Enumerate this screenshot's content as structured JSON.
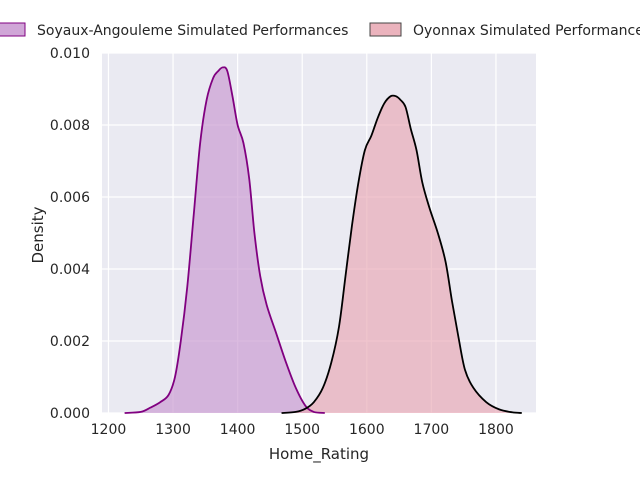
{
  "chart_data": {
    "type": "area",
    "title": "",
    "xlabel": "Home_Rating",
    "ylabel": "Density",
    "xlim": [
      1190,
      1862
    ],
    "ylim": [
      0,
      0.01
    ],
    "x_ticks": [
      1200,
      1300,
      1400,
      1500,
      1600,
      1700,
      1800
    ],
    "y_ticks": [
      0.0,
      0.002,
      0.004,
      0.006,
      0.008,
      0.01
    ],
    "y_tick_labels": [
      "0.000",
      "0.002",
      "0.004",
      "0.006",
      "0.008",
      "0.010"
    ],
    "grid": true,
    "legend_position": "top",
    "series": [
      {
        "name": "Soyaux-Angouleme Simulated Performances",
        "fill": "#c897d0",
        "line": "#800080",
        "points": [
          [
            1225,
            0.0
          ],
          [
            1250,
            3e-05
          ],
          [
            1265,
            0.00015
          ],
          [
            1280,
            0.0003
          ],
          [
            1293,
            0.0005
          ],
          [
            1303,
            0.001
          ],
          [
            1312,
            0.002
          ],
          [
            1322,
            0.0035
          ],
          [
            1332,
            0.0055
          ],
          [
            1342,
            0.0075
          ],
          [
            1352,
            0.0087
          ],
          [
            1362,
            0.0093
          ],
          [
            1370,
            0.0095
          ],
          [
            1377,
            0.0096
          ],
          [
            1384,
            0.0095
          ],
          [
            1392,
            0.0088
          ],
          [
            1400,
            0.008
          ],
          [
            1409,
            0.0075
          ],
          [
            1418,
            0.0065
          ],
          [
            1426,
            0.005
          ],
          [
            1435,
            0.0038
          ],
          [
            1445,
            0.003
          ],
          [
            1460,
            0.0022
          ],
          [
            1475,
            0.0014
          ],
          [
            1490,
            0.0007
          ],
          [
            1505,
            0.0002
          ],
          [
            1518,
            3e-05
          ],
          [
            1535,
            0.0
          ]
        ]
      },
      {
        "name": "Oyonnax Simulated Performances",
        "fill": "#e8a6b2",
        "line": "#000000",
        "points": [
          [
            1468,
            0.0
          ],
          [
            1490,
            3e-05
          ],
          [
            1505,
            0.00012
          ],
          [
            1518,
            0.0003
          ],
          [
            1532,
            0.0007
          ],
          [
            1545,
            0.0014
          ],
          [
            1557,
            0.0024
          ],
          [
            1567,
            0.0038
          ],
          [
            1577,
            0.0052
          ],
          [
            1587,
            0.0064
          ],
          [
            1597,
            0.0073
          ],
          [
            1607,
            0.0077
          ],
          [
            1617,
            0.0082
          ],
          [
            1627,
            0.0086
          ],
          [
            1637,
            0.0088
          ],
          [
            1645,
            0.0088
          ],
          [
            1652,
            0.0087
          ],
          [
            1660,
            0.0085
          ],
          [
            1668,
            0.0079
          ],
          [
            1677,
            0.0073
          ],
          [
            1686,
            0.0064
          ],
          [
            1697,
            0.0057
          ],
          [
            1710,
            0.005
          ],
          [
            1722,
            0.0042
          ],
          [
            1732,
            0.0031
          ],
          [
            1742,
            0.0021
          ],
          [
            1752,
            0.0012
          ],
          [
            1765,
            0.0007
          ],
          [
            1785,
            0.0003
          ],
          [
            1805,
            0.0001
          ],
          [
            1825,
            2e-05
          ],
          [
            1840,
            0.0
          ]
        ]
      }
    ]
  }
}
